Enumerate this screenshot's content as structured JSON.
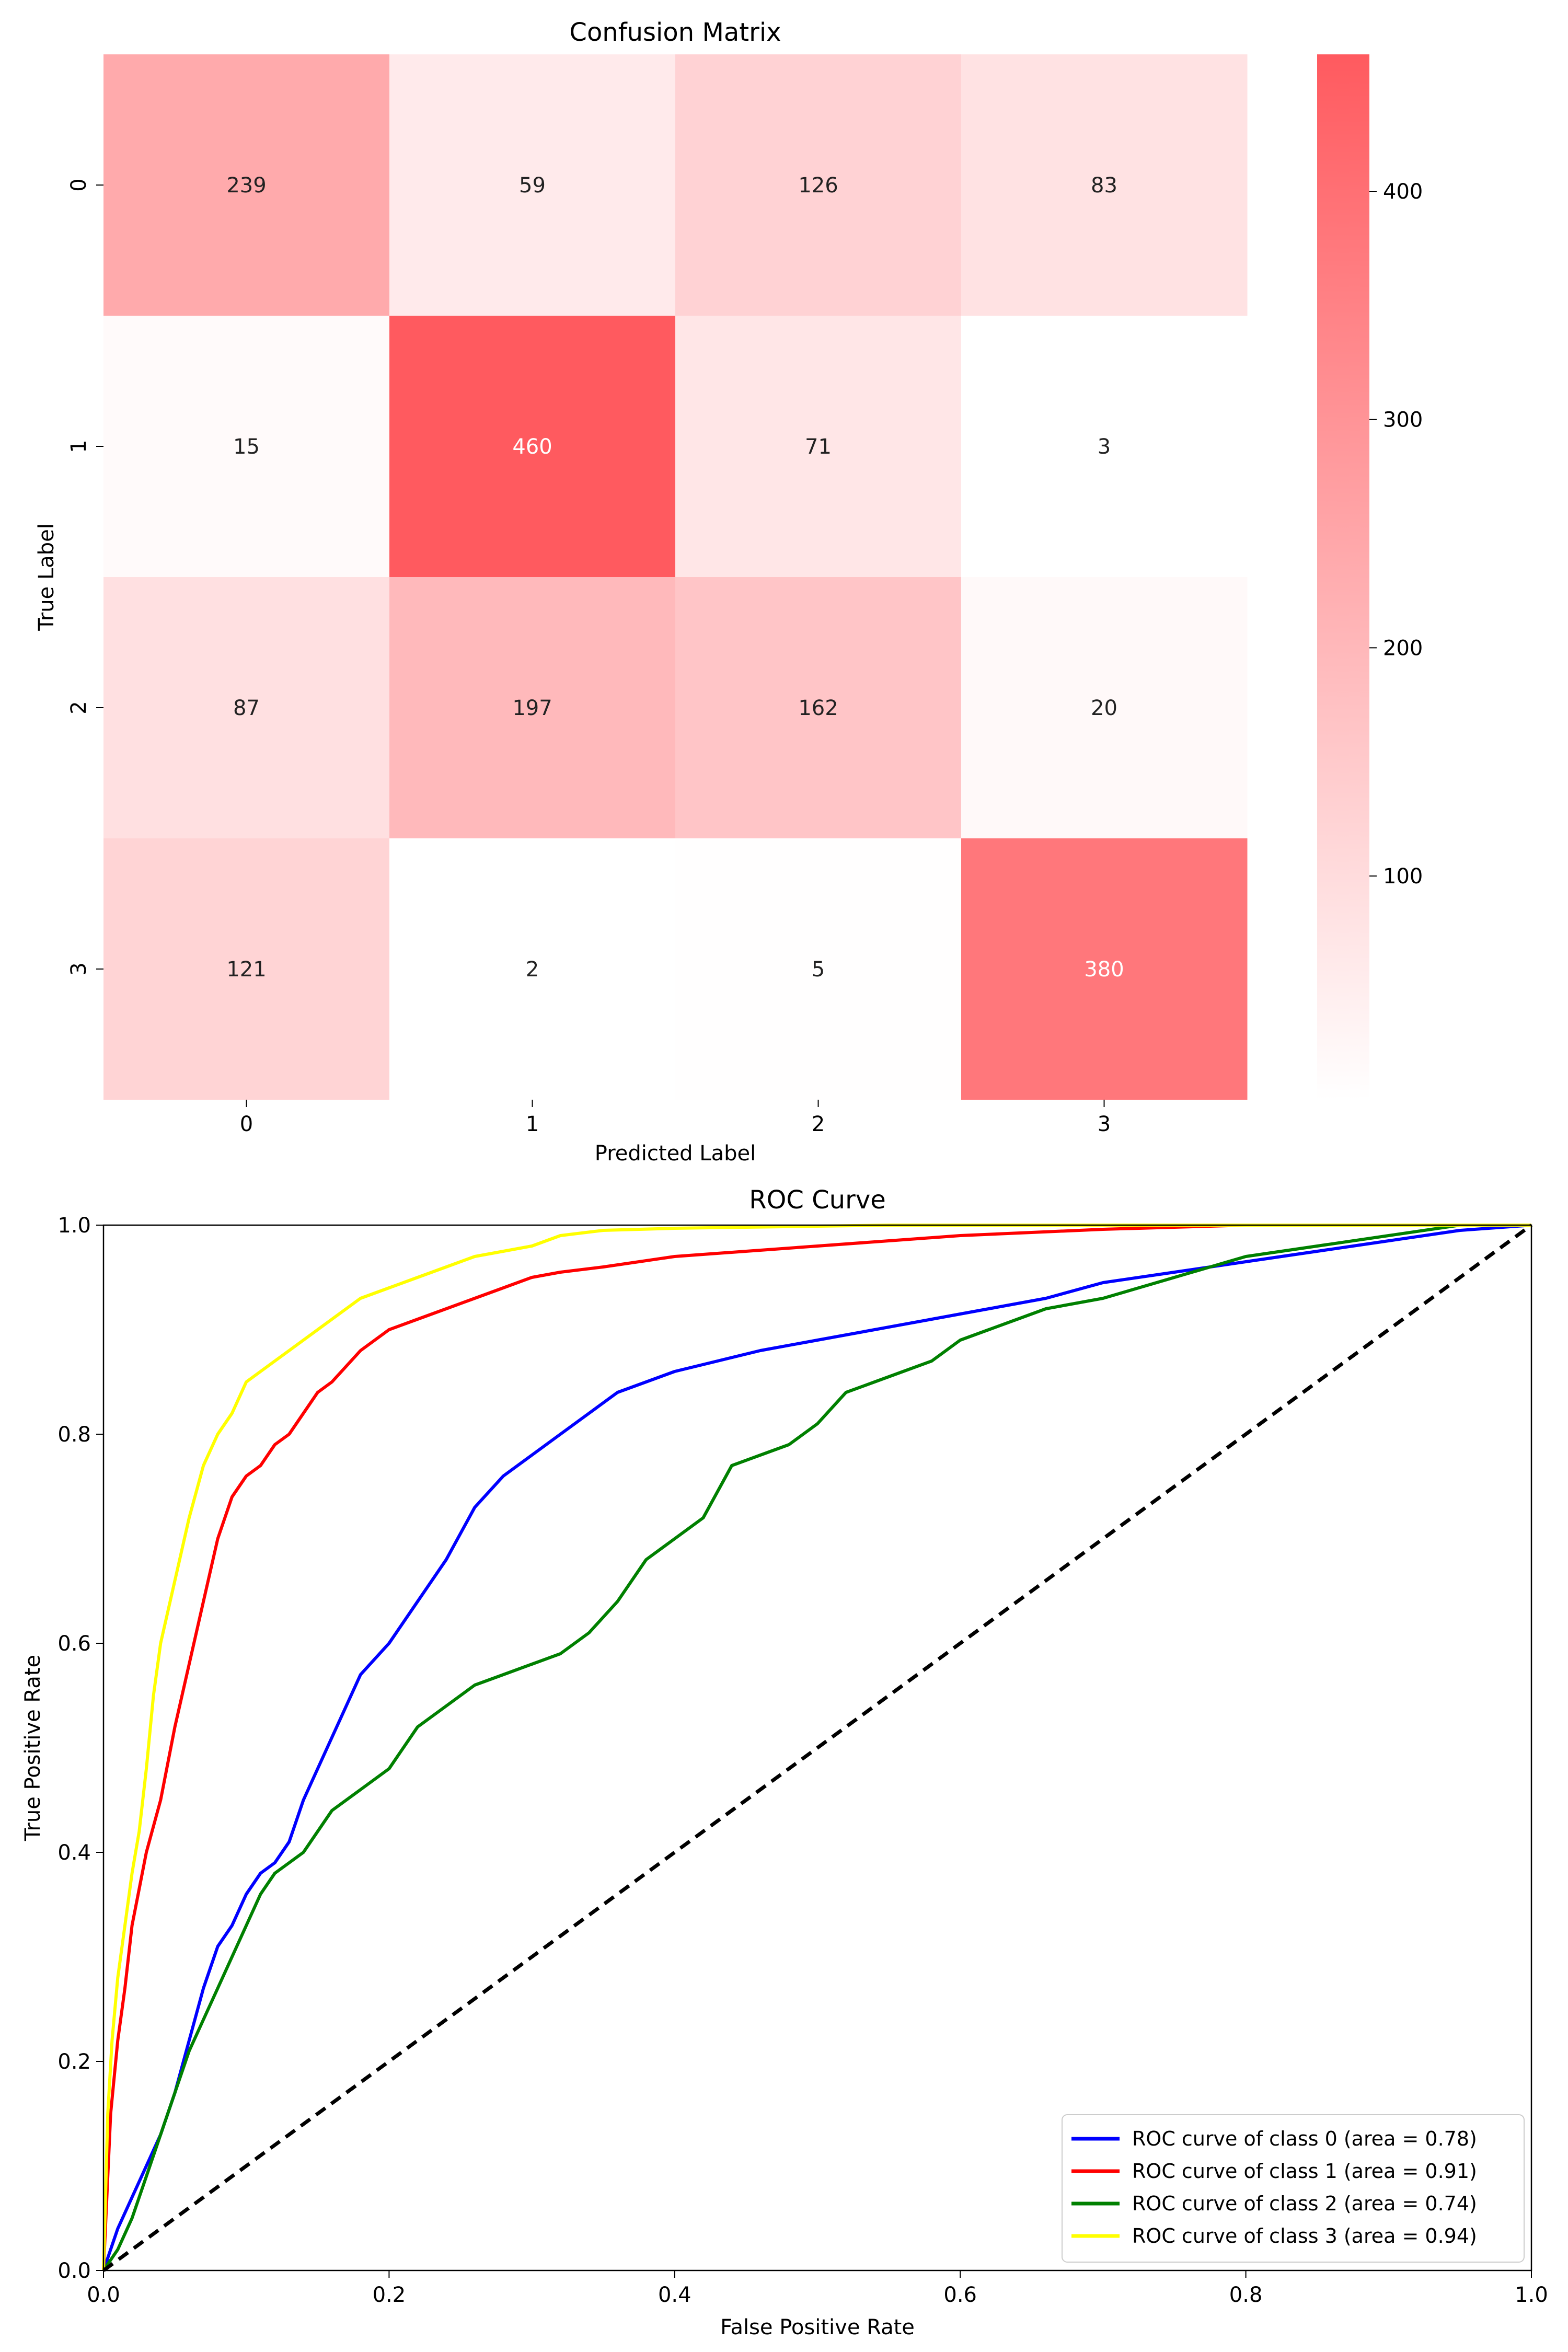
{
  "chart_data": [
    {
      "type": "heatmap",
      "title": "Confusion Matrix",
      "xlabel": "Predicted Label",
      "ylabel": "True Label",
      "x_categories": [
        "0",
        "1",
        "2",
        "3"
      ],
      "y_categories": [
        "0",
        "1",
        "2",
        "3"
      ],
      "values": [
        [
          239,
          59,
          126,
          83
        ],
        [
          15,
          460,
          71,
          3
        ],
        [
          87,
          197,
          162,
          20
        ],
        [
          121,
          2,
          5,
          380
        ]
      ],
      "colormap": {
        "low": "#ffffff",
        "high": "#ff5a5f"
      },
      "colorbar": {
        "min": 2,
        "max": 460,
        "ticks": [
          "100",
          "200",
          "300",
          "400"
        ]
      },
      "cell_label_colors": {
        "light": "#ffffff",
        "dark": "#222222"
      }
    },
    {
      "type": "line",
      "title": "ROC Curve",
      "xlabel": "False Positive Rate",
      "ylabel": "True Positive Rate",
      "xlim": [
        0.0,
        1.0
      ],
      "ylim": [
        0.0,
        1.0
      ],
      "xticks": [
        "0.0",
        "0.2",
        "0.4",
        "0.6",
        "0.8",
        "1.0"
      ],
      "yticks": [
        "0.0",
        "0.2",
        "0.4",
        "0.6",
        "0.8",
        "1.0"
      ],
      "legend_position": "bottom-right",
      "series": [
        {
          "name": "ROC curve of class 0 (area = 0.78)",
          "color": "#0000ff",
          "x": [
            0,
            0.01,
            0.02,
            0.03,
            0.04,
            0.05,
            0.06,
            0.07,
            0.08,
            0.09,
            0.1,
            0.11,
            0.12,
            0.13,
            0.14,
            0.15,
            0.16,
            0.18,
            0.2,
            0.22,
            0.24,
            0.26,
            0.28,
            0.3,
            0.32,
            0.34,
            0.36,
            0.38,
            0.4,
            0.43,
            0.46,
            0.5,
            0.54,
            0.58,
            0.62,
            0.66,
            0.7,
            0.75,
            0.8,
            0.85,
            0.9,
            0.95,
            1.0
          ],
          "y": [
            0,
            0.04,
            0.07,
            0.1,
            0.13,
            0.17,
            0.22,
            0.27,
            0.31,
            0.33,
            0.36,
            0.38,
            0.39,
            0.41,
            0.45,
            0.48,
            0.51,
            0.57,
            0.6,
            0.64,
            0.68,
            0.73,
            0.76,
            0.78,
            0.8,
            0.82,
            0.84,
            0.85,
            0.86,
            0.87,
            0.88,
            0.89,
            0.9,
            0.91,
            0.92,
            0.93,
            0.945,
            0.955,
            0.965,
            0.975,
            0.985,
            0.995,
            1.0
          ]
        },
        {
          "name": "ROC curve of class 1 (area = 0.91)",
          "color": "#ff0000",
          "x": [
            0,
            0.005,
            0.01,
            0.015,
            0.02,
            0.03,
            0.04,
            0.05,
            0.06,
            0.07,
            0.08,
            0.09,
            0.1,
            0.11,
            0.12,
            0.13,
            0.14,
            0.15,
            0.16,
            0.18,
            0.2,
            0.22,
            0.24,
            0.26,
            0.28,
            0.3,
            0.32,
            0.35,
            0.4,
            0.45,
            0.5,
            0.55,
            0.6,
            0.65,
            0.7,
            0.75,
            0.8,
            1.0
          ],
          "y": [
            0,
            0.15,
            0.22,
            0.27,
            0.33,
            0.4,
            0.45,
            0.52,
            0.58,
            0.64,
            0.7,
            0.74,
            0.76,
            0.77,
            0.79,
            0.8,
            0.82,
            0.84,
            0.85,
            0.88,
            0.9,
            0.91,
            0.92,
            0.93,
            0.94,
            0.95,
            0.955,
            0.96,
            0.97,
            0.975,
            0.98,
            0.985,
            0.99,
            0.993,
            0.996,
            0.998,
            1.0,
            1.0
          ]
        },
        {
          "name": "ROC curve of class 2 (area = 0.74)",
          "color": "#008000",
          "x": [
            0,
            0.01,
            0.02,
            0.03,
            0.04,
            0.05,
            0.06,
            0.07,
            0.08,
            0.09,
            0.1,
            0.11,
            0.12,
            0.13,
            0.14,
            0.15,
            0.16,
            0.18,
            0.2,
            0.22,
            0.24,
            0.26,
            0.28,
            0.3,
            0.32,
            0.34,
            0.36,
            0.38,
            0.4,
            0.42,
            0.44,
            0.46,
            0.48,
            0.5,
            0.52,
            0.54,
            0.56,
            0.58,
            0.6,
            0.62,
            0.64,
            0.66,
            0.7,
            0.75,
            0.8,
            0.85,
            0.9,
            0.95,
            1.0
          ],
          "y": [
            0,
            0.02,
            0.05,
            0.09,
            0.13,
            0.17,
            0.21,
            0.24,
            0.27,
            0.3,
            0.33,
            0.36,
            0.38,
            0.39,
            0.4,
            0.42,
            0.44,
            0.46,
            0.48,
            0.52,
            0.54,
            0.56,
            0.57,
            0.58,
            0.59,
            0.61,
            0.64,
            0.68,
            0.7,
            0.72,
            0.77,
            0.78,
            0.79,
            0.81,
            0.84,
            0.85,
            0.86,
            0.87,
            0.89,
            0.9,
            0.91,
            0.92,
            0.93,
            0.95,
            0.97,
            0.98,
            0.99,
            1.0,
            1.0
          ]
        },
        {
          "name": "ROC curve of class 3 (area = 0.94)",
          "color": "#ffff00",
          "x": [
            0,
            0.003,
            0.006,
            0.01,
            0.015,
            0.02,
            0.025,
            0.03,
            0.035,
            0.04,
            0.05,
            0.06,
            0.07,
            0.08,
            0.09,
            0.1,
            0.11,
            0.12,
            0.13,
            0.14,
            0.15,
            0.16,
            0.18,
            0.2,
            0.22,
            0.24,
            0.26,
            0.28,
            0.3,
            0.32,
            0.35,
            0.4,
            0.45,
            0.5,
            0.55,
            0.6,
            1.0
          ],
          "y": [
            0,
            0.15,
            0.22,
            0.28,
            0.33,
            0.38,
            0.42,
            0.48,
            0.55,
            0.6,
            0.66,
            0.72,
            0.77,
            0.8,
            0.82,
            0.85,
            0.86,
            0.87,
            0.88,
            0.89,
            0.9,
            0.91,
            0.93,
            0.94,
            0.95,
            0.96,
            0.97,
            0.975,
            0.98,
            0.99,
            0.995,
            0.997,
            0.998,
            0.999,
            1.0,
            1.0,
            1.0
          ]
        },
        {
          "name": "",
          "color": "#000000",
          "dashed": true,
          "x": [
            0,
            1
          ],
          "y": [
            0,
            1
          ]
        }
      ]
    }
  ]
}
